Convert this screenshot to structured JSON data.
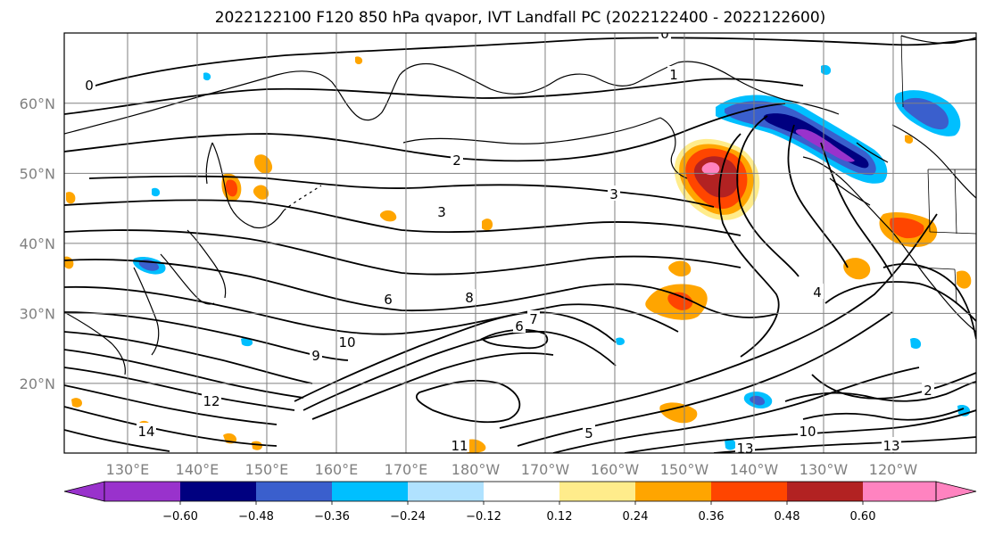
{
  "chart_data": {
    "type": "contour-map",
    "title": "2022122100 F120 850 hPa qvapor, IVT Landfall PC (2022122400 - 2022122600)",
    "x_tick_labels": [
      "130°E",
      "140°E",
      "150°E",
      "160°E",
      "170°E",
      "180°W",
      "170°W",
      "160°W",
      "150°W",
      "140°W",
      "130°W",
      "120°W"
    ],
    "y_tick_labels": [
      "20°N",
      "30°N",
      "40°N",
      "50°N",
      "60°N"
    ],
    "xlim": [
      120,
      251
    ],
    "ylim": [
      10,
      69
    ],
    "grid": true,
    "contour_labels": [
      "0",
      "1",
      "2",
      "3",
      "3",
      "6",
      "8",
      "10",
      "12",
      "14",
      "9",
      "7",
      "6",
      "5",
      "11",
      "13",
      "10",
      "13",
      "2",
      "4",
      "0"
    ],
    "colorbar": {
      "ticks": [
        "−0.60",
        "−0.48",
        "−0.36",
        "−0.24",
        "−0.12",
        "0.12",
        "0.24",
        "0.36",
        "0.48",
        "0.60"
      ],
      "colors": [
        "#9932cc",
        "#000080",
        "#3a5fcd",
        "#00bfff",
        "#b0e2ff",
        "#ffffff",
        "#ffec8b",
        "#ffa500",
        "#ff4500",
        "#b22222",
        "#ff83c0"
      ],
      "extend": "both"
    },
    "positive_anomalies": [
      {
        "name": "gulf-of-alaska",
        "lon": 207,
        "lat": 50,
        "peak": 0.6
      },
      {
        "name": "subtropical-central",
        "lon": 206,
        "lat": 31,
        "peak": 0.4
      },
      {
        "name": "northwest-pacific-coast",
        "lon": 236,
        "lat": 42,
        "peak": 0.4
      },
      {
        "name": "kamchatka-okhotsk",
        "lon": 144,
        "lat": 47,
        "peak": 0.4
      }
    ],
    "negative_anomalies": [
      {
        "name": "alaska-panhandle",
        "lon": 225,
        "lat": 56,
        "peak": -0.6
      },
      {
        "name": "northwest-canada",
        "lon": 242,
        "lat": 60,
        "peak": -0.36
      },
      {
        "name": "yellow-sea",
        "lon": 127,
        "lat": 35,
        "peak": -0.36
      },
      {
        "name": "central-subtropics",
        "lon": 219,
        "lat": 20,
        "peak": -0.24
      }
    ]
  }
}
